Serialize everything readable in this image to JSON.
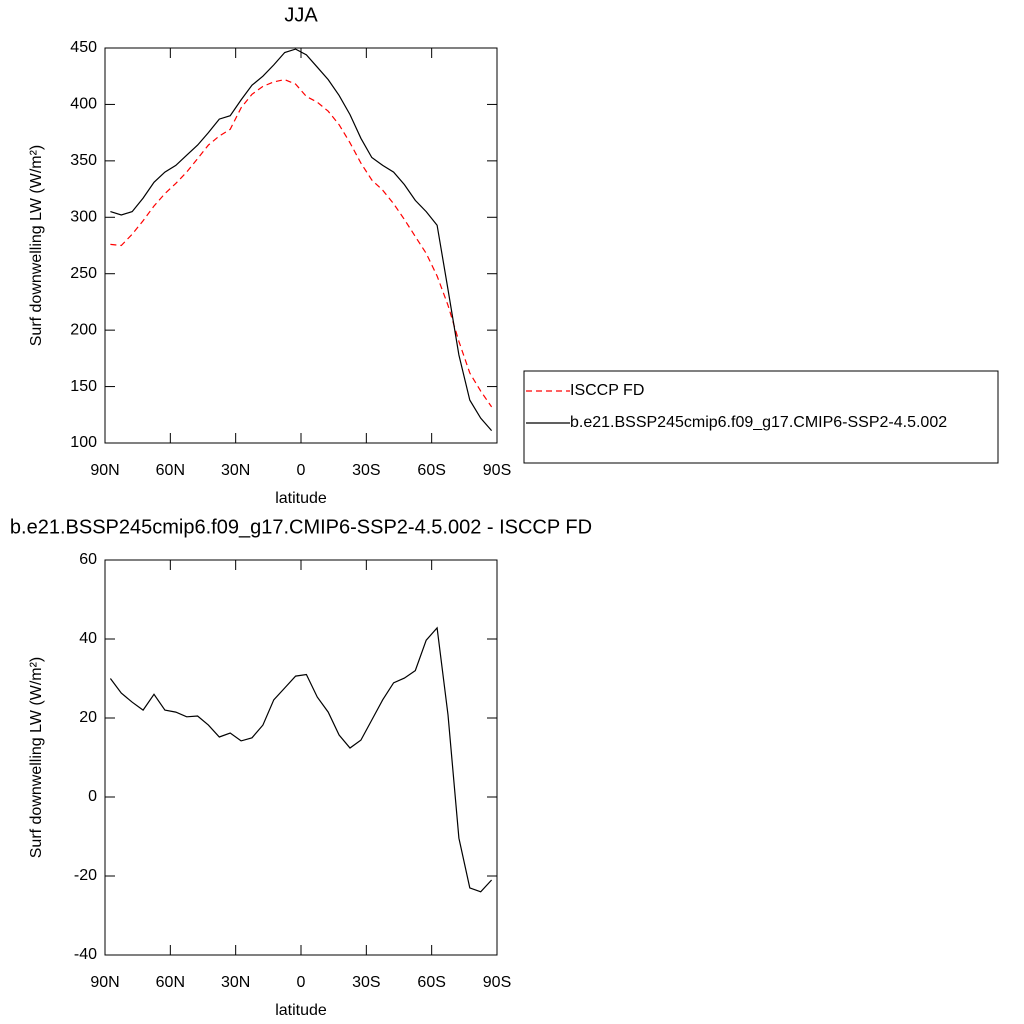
{
  "chart_data": [
    {
      "type": "line",
      "title": "JJA",
      "xlabel": "latitude",
      "ylabel": "Surf downwelling LW (W/m²)",
      "x": [
        87.5,
        82.5,
        77.5,
        72.5,
        67.5,
        62.5,
        57.5,
        52.5,
        47.5,
        42.5,
        37.5,
        32.5,
        27.5,
        22.5,
        17.5,
        12.5,
        7.5,
        2.5,
        -2.5,
        -7.5,
        -12.5,
        -17.5,
        -22.5,
        -27.5,
        -32.5,
        -37.5,
        -42.5,
        -47.5,
        -52.5,
        -57.5,
        -62.5,
        -67.5,
        -72.5,
        -77.5,
        -82.5,
        -87.5
      ],
      "series": [
        {
          "name": "ISCCP FD",
          "color": "#ff0000",
          "linestyle": "dashed",
          "values": [
            276,
            275,
            285,
            297,
            310,
            321,
            330,
            340,
            352,
            364,
            372,
            378,
            397,
            409,
            416,
            420,
            422,
            418,
            407,
            402,
            394,
            382,
            366,
            348,
            333,
            324,
            312,
            298,
            283,
            268,
            248,
            222,
            190,
            162,
            146,
            132
          ]
        },
        {
          "name": "b.e21.BSSP245cmip6.f09_g17.CMIP6-SSP2-4.5.002",
          "color": "#000000",
          "linestyle": "solid",
          "values": [
            305,
            302,
            305,
            317,
            331,
            340,
            346,
            355,
            364,
            375,
            387,
            390,
            404,
            417,
            425,
            435,
            446,
            449,
            444,
            433,
            422,
            408,
            391,
            370,
            353,
            346,
            340,
            329,
            315,
            305,
            293,
            236,
            178,
            138,
            122,
            111
          ]
        }
      ],
      "xlim": [
        90,
        -90
      ],
      "xticks": [
        {
          "value": 90,
          "label": "90N"
        },
        {
          "value": 60,
          "label": "60N"
        },
        {
          "value": 30,
          "label": "30N"
        },
        0,
        {
          "value": -30,
          "label": "30S"
        },
        {
          "value": -60,
          "label": "60S"
        },
        {
          "value": -90,
          "label": "90S"
        }
      ],
      "ylim": [
        100,
        450
      ],
      "yticks": [
        100,
        150,
        200,
        250,
        300,
        350,
        400,
        450
      ],
      "legend": "outside-right"
    },
    {
      "type": "line",
      "title": "b.e21.BSSP245cmip6.f09_g17.CMIP6-SSP2-4.5.002 - ISCCP FD",
      "xlabel": "latitude",
      "ylabel": "Surf downwelling LW (W/m²)",
      "x": [
        87.5,
        82.5,
        77.5,
        72.5,
        67.5,
        62.5,
        57.5,
        52.5,
        47.5,
        42.5,
        37.5,
        32.5,
        27.5,
        22.5,
        17.5,
        12.5,
        7.5,
        2.5,
        -2.5,
        -7.5,
        -12.5,
        -17.5,
        -22.5,
        -27.5,
        -32.5,
        -37.5,
        -42.5,
        -47.5,
        -52.5,
        -57.5,
        -62.5,
        -67.5,
        -72.5,
        -77.5,
        -82.5,
        -87.5
      ],
      "series": [
        {
          "color": "#000000",
          "linestyle": "solid",
          "values": [
            30,
            26.3,
            24,
            22,
            26,
            22,
            21.5,
            20.3,
            20.5,
            18.2,
            15.2,
            16.2,
            14.2,
            15,
            18.2,
            24.6,
            27.6,
            30.6,
            31,
            25.3,
            21.5,
            15.7,
            12.4,
            14.4,
            19.5,
            24.6,
            28.9,
            30.1,
            32,
            39.7,
            42.8,
            20.8,
            -10.4,
            -23,
            -24,
            -21
          ]
        }
      ],
      "xlim": [
        90,
        -90
      ],
      "xticks": [
        {
          "value": 90,
          "label": "90N"
        },
        {
          "value": 60,
          "label": "60N"
        },
        {
          "value": 30,
          "label": "30N"
        },
        0,
        {
          "value": -30,
          "label": "30S"
        },
        {
          "value": -60,
          "label": "60S"
        },
        {
          "value": -90,
          "label": "90S"
        }
      ],
      "ylim": [
        -40,
        60
      ],
      "yticks": [
        -40,
        -20,
        0,
        20,
        40,
        60
      ]
    }
  ]
}
